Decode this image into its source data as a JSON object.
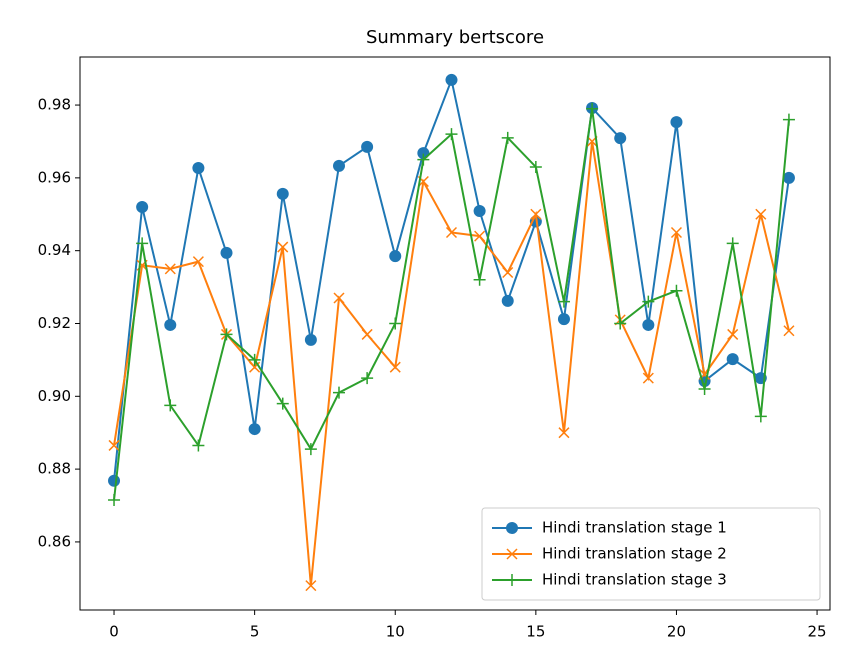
{
  "chart_data": {
    "type": "line",
    "title": "Summary bertscore",
    "x": [
      0,
      1,
      2,
      3,
      4,
      5,
      6,
      7,
      8,
      9,
      10,
      11,
      12,
      13,
      14,
      15,
      16,
      17,
      18,
      19,
      20,
      21,
      22,
      23,
      24
    ],
    "series": [
      {
        "name": "Hindi translation stage 1",
        "color": "#1f77b4",
        "marker": "circle",
        "values": [
          0.8768,
          0.952,
          0.9196,
          0.9627,
          0.9394,
          0.891,
          0.9556,
          0.9155,
          0.9633,
          0.9685,
          0.9385,
          0.9668,
          0.9869,
          0.9509,
          0.9262,
          0.948,
          0.9212,
          0.9792,
          0.9709,
          0.9196,
          0.9753,
          0.9042,
          0.9102,
          0.905,
          0.96
        ]
      },
      {
        "name": "Hindi translation stage 2",
        "color": "#ff7f0e",
        "marker": "x",
        "values": [
          0.8865,
          0.936,
          0.935,
          0.937,
          0.917,
          0.908,
          0.941,
          0.848,
          0.927,
          0.917,
          0.908,
          0.959,
          0.945,
          0.944,
          0.934,
          0.95,
          0.89,
          0.97,
          0.921,
          0.905,
          0.945,
          0.906,
          0.917,
          0.95,
          0.918
        ]
      },
      {
        "name": "Hindi translation stage 3",
        "color": "#2ca02c",
        "marker": "plus",
        "values": [
          0.8715,
          0.942,
          0.8975,
          0.8865,
          0.917,
          0.91,
          0.898,
          0.8855,
          0.901,
          0.905,
          0.92,
          0.965,
          0.972,
          0.932,
          0.971,
          0.963,
          0.926,
          0.979,
          0.92,
          0.926,
          0.929,
          0.902,
          0.942,
          0.8945,
          0.976
        ]
      }
    ],
    "xlim": [
      -1.21,
      25.46
    ],
    "xticks": [
      0,
      5,
      10,
      15,
      20,
      25
    ],
    "ylim": [
      0.8413,
      0.9932
    ],
    "yticks": [
      0.86,
      0.88,
      {
        "value": 0.9,
        "label": "0.90"
      },
      0.92,
      0.94,
      0.96,
      0.98
    ],
    "grid": false,
    "legend": "lower right"
  }
}
